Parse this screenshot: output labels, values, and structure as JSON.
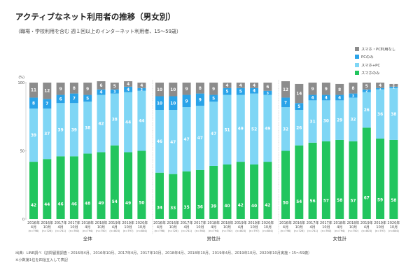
{
  "title": "アクティブなネット利用者の推移（男女別）",
  "subtitle": "（職場・学校利用を含む 週１回以上のインターネット利用者、15～59歳）",
  "source": "出典：LINE調べ（訪問留置調査・2016年4月、2016年10月、2017年4月、2017年10月、2018年4月、2018年10月、2019年4月、2019年10月、2020年10月実施・15～59歳）",
  "note": "※小数第1位を四捨五入して表記",
  "colors": {
    "no_use": "#8c8c8c",
    "pc_only": "#2aa3e8",
    "both": "#7fd6f5",
    "smartphone_only": "#22c55e",
    "axis": "#bbbbbb",
    "divider": "#bfbfbf"
  },
  "legend": [
    {
      "name": "スマホ・PC利用なし",
      "color": "#8c8c8c"
    },
    {
      "name": "PCのみ",
      "color": "#2aa3e8"
    },
    {
      "name": "スマホ+PC",
      "color": "#7fd6f5"
    },
    {
      "name": "スマホのみ",
      "color": "#22c55e"
    }
  ],
  "chart_data": {
    "type": "bar",
    "stacked": true,
    "y_unit": "(%)",
    "ylim": [
      0,
      100
    ],
    "yticks": [
      0,
      50,
      100
    ],
    "legend_position": "top-right",
    "categories": [
      {
        "year": "2016年",
        "month": "4月",
        "n": "(n=798)"
      },
      {
        "year": "2016年",
        "month": "10月",
        "n": "(n=726)"
      },
      {
        "year": "2017年",
        "month": "4月",
        "n": "(n=741)"
      },
      {
        "year": "2017年",
        "month": "10月",
        "n": "(n=760)"
      },
      {
        "year": "2018年",
        "month": "4月",
        "n": "(n=794)"
      },
      {
        "year": "2018年",
        "month": "10月",
        "n": "(n=750)"
      },
      {
        "year": "2019年",
        "month": "4月",
        "n": "(n=803)"
      },
      {
        "year": "2019年",
        "month": "10月",
        "n": "(n=797)"
      },
      {
        "year": "2020年",
        "month": "10月",
        "n": "(n=804)"
      }
    ],
    "groups": [
      {
        "name": "全体",
        "series": [
          {
            "name": "スマホのみ",
            "values": [
              42,
              44,
              46,
              46,
              48,
              49,
              54,
              49,
              50
            ]
          },
          {
            "name": "スマホ+PC",
            "values": [
              39,
              37,
              39,
              39,
              38,
              42,
              38,
              44,
              44
            ]
          },
          {
            "name": "PCのみ",
            "values": [
              8,
              7,
              6,
              7,
              5,
              4,
              3,
              4,
              2
            ]
          },
          {
            "name": "スマホ・PC利用なし",
            "values": [
              11,
              12,
              9,
              8,
              9,
              6,
              5,
              4,
              4
            ]
          }
        ]
      },
      {
        "name": "男性計",
        "series": [
          {
            "name": "スマホのみ",
            "values": [
              34,
              33,
              35,
              36,
              39,
              40,
              42,
              40,
              42
            ]
          },
          {
            "name": "スマホ+PC",
            "values": [
              46,
              47,
              47,
              47,
              47,
              51,
              49,
              52,
              49
            ]
          },
          {
            "name": "PCのみ",
            "values": [
              10,
              10,
              9,
              9,
              5,
              5,
              5,
              4,
              3
            ]
          },
          {
            "name": "スマホ・PC利用なし",
            "values": [
              10,
              10,
              9,
              8,
              9,
              4,
              4,
              4,
              6
            ]
          }
        ]
      },
      {
        "name": "女性計",
        "series": [
          {
            "name": "スマホのみ",
            "values": [
              50,
              54,
              56,
              57,
              58,
              57,
              67,
              59,
              58
            ]
          },
          {
            "name": "スマホ+PC",
            "values": [
              32,
              26,
              31,
              30,
              29,
              32,
              26,
              36,
              38
            ]
          },
          {
            "name": "PCのみ",
            "values": [
              7,
              5,
              4,
              4,
              4,
              3,
              2,
              1,
              1
            ]
          },
          {
            "name": "スマホ・PC利用なし",
            "values": [
              12,
              14,
              9,
              9,
              8,
              8,
              5,
              4,
              2
            ]
          }
        ]
      }
    ]
  }
}
